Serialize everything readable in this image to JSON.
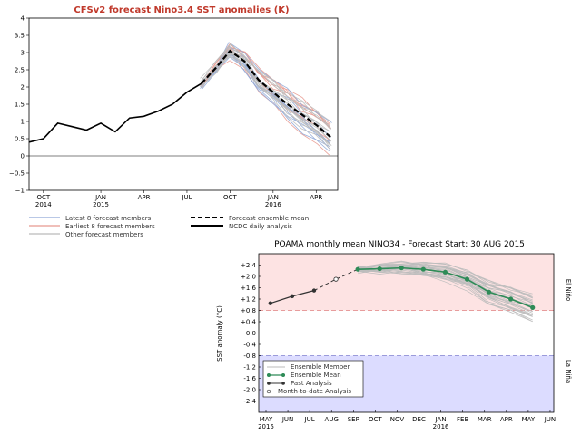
{
  "chart_data": [
    {
      "type": "line",
      "title": "CFSv2 forecast Nino3.4 SST anomalies (K)",
      "ylim": [
        -1,
        4
      ],
      "yticks": [
        -1,
        -0.5,
        0,
        0.5,
        1,
        1.5,
        2,
        2.5,
        3,
        3.5,
        4
      ],
      "ytick_labels": [
        "−1",
        "−0.5",
        "0",
        "0.5",
        "1",
        "1.5",
        "2",
        "2.5",
        "3",
        "3.5",
        "4"
      ],
      "x_ticks": [
        {
          "t": 1,
          "label": "OCT",
          "sub": "2014"
        },
        {
          "t": 5,
          "label": "JAN",
          "sub": "2015"
        },
        {
          "t": 8,
          "label": "APR",
          "sub": ""
        },
        {
          "t": 11,
          "label": "JUL",
          "sub": ""
        },
        {
          "t": 14,
          "label": "OCT",
          "sub": ""
        },
        {
          "t": 17,
          "label": "JAN",
          "sub": "2016"
        },
        {
          "t": 20,
          "label": "APR",
          "sub": ""
        }
      ],
      "xlim": [
        0,
        21.5
      ],
      "series": [
        {
          "name": "NCDC daily analysis",
          "style": "solid",
          "color": "#000000",
          "x": [
            0,
            1,
            2,
            3,
            4,
            5,
            6,
            7,
            8,
            9,
            10,
            11,
            12
          ],
          "y": [
            0.4,
            0.5,
            0.95,
            0.85,
            0.75,
            0.95,
            0.7,
            1.1,
            1.15,
            1.3,
            1.5,
            1.85,
            2.1
          ]
        },
        {
          "name": "Forecast ensemble mean",
          "style": "dashed",
          "color": "#000000",
          "x": [
            12,
            13,
            14,
            15,
            16,
            17,
            18,
            19,
            20,
            21
          ],
          "y": [
            2.1,
            2.55,
            3.05,
            2.75,
            2.2,
            1.85,
            1.5,
            1.2,
            0.9,
            0.55
          ]
        }
      ],
      "legend": [
        {
          "label": "Latest 8 forecast members",
          "color": "#8fa8d8",
          "style": "solid"
        },
        {
          "label": "Earliest 8 forecast members",
          "color": "#e8998f",
          "style": "solid"
        },
        {
          "label": "Other forecast members",
          "color": "#bbbbbb",
          "style": "solid"
        },
        {
          "label": "Forecast ensemble mean",
          "color": "#000000",
          "style": "dashed"
        },
        {
          "label": "NCDC daily analysis",
          "color": "#000000",
          "style": "solid"
        }
      ]
    },
    {
      "type": "line",
      "title": "POAMA monthly mean NINO34 - Forecast Start: 30 AUG 2015",
      "ylabel": "SST anomaly (°C)",
      "ylim": [
        -2.8,
        2.8
      ],
      "ytick_labels": [
        "+2.4",
        "+2.0",
        "+1.6",
        "+1.2",
        "+0.8",
        "+0.4",
        "0.0",
        "-0.4",
        "-0.8",
        "-1.2",
        "-1.6",
        "-2.0",
        "-2.4"
      ],
      "yticks": [
        2.4,
        2.0,
        1.6,
        1.2,
        0.8,
        0.4,
        0.0,
        -0.4,
        -0.8,
        -1.2,
        -1.6,
        -2.0,
        -2.4
      ],
      "el_nino_label": "El Niño",
      "la_nina_label": "La Niña",
      "threshold": 0.8,
      "xlim": [
        0,
        13.5
      ],
      "x_ticks": [
        {
          "t": 0,
          "label": "MAY",
          "sub": "2015"
        },
        {
          "t": 1,
          "label": "JUN",
          "sub": ""
        },
        {
          "t": 2,
          "label": "JUL",
          "sub": ""
        },
        {
          "t": 3,
          "label": "AUG",
          "sub": ""
        },
        {
          "t": 4,
          "label": "SEP",
          "sub": ""
        },
        {
          "t": 5,
          "label": "OCT",
          "sub": ""
        },
        {
          "t": 6,
          "label": "NOV",
          "sub": ""
        },
        {
          "t": 7,
          "label": "DEC",
          "sub": ""
        },
        {
          "t": 8,
          "label": "JAN",
          "sub": "2016"
        },
        {
          "t": 9,
          "label": "FEB",
          "sub": ""
        },
        {
          "t": 10,
          "label": "MAR",
          "sub": ""
        },
        {
          "t": 11,
          "label": "APR",
          "sub": ""
        },
        {
          "t": 12,
          "label": "MAY",
          "sub": ""
        },
        {
          "t": 13,
          "label": "JUN",
          "sub": ""
        }
      ],
      "series": [
        {
          "name": "Past Analysis",
          "x": [
            0.2,
            1.2,
            2.2
          ],
          "y": [
            1.05,
            1.3,
            1.5
          ]
        },
        {
          "name": "Month-to-date Analysis",
          "x": [
            3.2
          ],
          "y": [
            1.9
          ]
        },
        {
          "name": "Ensemble Mean",
          "x": [
            4.2,
            5.2,
            6.2,
            7.2,
            8.2,
            9.2,
            10.2,
            11.2,
            12.2
          ],
          "y": [
            2.25,
            2.27,
            2.3,
            2.25,
            2.15,
            1.9,
            1.45,
            1.2,
            0.9
          ]
        }
      ],
      "legend": [
        {
          "label": "Ensemble Member"
        },
        {
          "label": "Ensemble Mean"
        },
        {
          "label": "Past Analysis"
        },
        {
          "label": "Month-to-date Analysis"
        }
      ]
    }
  ],
  "colors": {
    "elnino_band": "#fde3e3",
    "lanina_band": "#dcdcff",
    "ensemble_mean": "#2e8b57",
    "threshold_line": "#e08080",
    "lanina_line": "#8080d0"
  }
}
